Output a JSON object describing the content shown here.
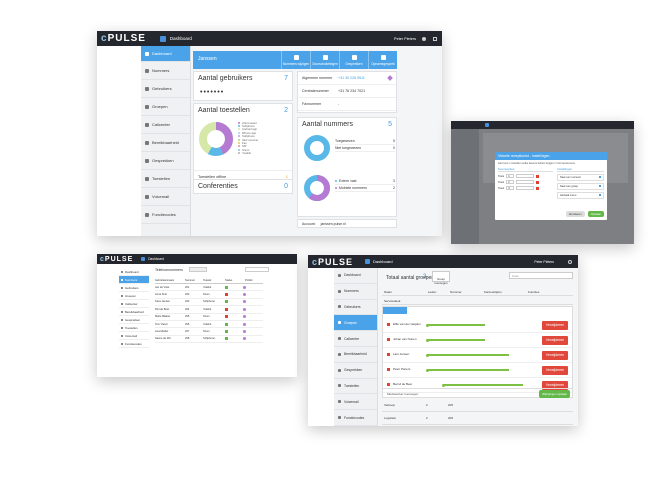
{
  "main": {
    "logo": "PULSE",
    "topbar_title": "Dashboard",
    "user": "Peter Pieters",
    "sidebar": [
      {
        "label": "Dashboard",
        "active": true
      },
      {
        "label": "Nummers"
      },
      {
        "label": "Gebruikers"
      },
      {
        "label": "Groepen"
      },
      {
        "label": "Callcenter"
      },
      {
        "label": "Bereikbaarheid"
      },
      {
        "label": "Gesprekken"
      },
      {
        "label": "Toestellen"
      },
      {
        "label": "Voicemail"
      },
      {
        "label": "Functiecodes"
      }
    ],
    "header_user": "Janssen",
    "header_buttons": [
      "Nummers wijzigen",
      "Doorschakelingen",
      "Gesprekken",
      "Opnamegesprek"
    ],
    "gebruikers": {
      "label": "Aantal gebruikers",
      "count": "7",
      "dots": "•••••••"
    },
    "toestellen": {
      "label": "Aantal toestellen",
      "count": "2",
      "legend": [
        "Ariel toestel",
        "Softphone",
        "Android app",
        "iPhone app",
        "Softphone",
        "Vast nummer",
        "Fax",
        "SIP",
        "Snom",
        "Yealink"
      ],
      "offline_label": "Toestellen offline",
      "offline_count": "1"
    },
    "conferenties": {
      "label": "Conferenties",
      "count": "0"
    },
    "info_rows": [
      {
        "label": "Algemeen nummer",
        "value": "+31 30 226 9511"
      },
      {
        "label": "Centralenummer",
        "value": "+31 76 234 7021"
      },
      {
        "label": "Faxnummer",
        "value": "-"
      }
    ],
    "nummers": {
      "label": "Aantal nummers",
      "count": "5",
      "donut1_rows": [
        {
          "label": "Toegewezen",
          "value": "5"
        },
        {
          "label": "Niet toegewezen",
          "value": "0"
        }
      ],
      "donut2_rows": [
        {
          "label": "Extern vast",
          "value": "3"
        },
        {
          "label": "Mobiele nummers",
          "value": "2"
        }
      ]
    },
    "account": {
      "label": "Account:",
      "value": "janssen.pulse.nl"
    }
  },
  "right_top": {
    "dialog_title": "Virtuele receptionist - Instellingen",
    "dialog_text": "Hier kunt u instellen welke keuzes bellers krijgen in het keuzemenu.",
    "col_left": "Keuzeopties",
    "col_right": "Instellingen",
    "rows": [
      {
        "k": "Toets",
        "v": "1"
      },
      {
        "k": "Toets",
        "v": "2"
      },
      {
        "k": "Toets",
        "v": "3"
      }
    ],
    "right_items": [
      "Naar een nummer",
      "Naar een groep",
      "Herhaal menu"
    ],
    "cancel": "Annuleren",
    "save": "Opslaan"
  },
  "left_bottom": {
    "topbar_title": "Dashboard",
    "header": "Telefoonnummers",
    "sidebar": [
      "Dashboard",
      "Nummers",
      "Gebruikers",
      "Groepen",
      "Callcenter",
      "Bereikbaarheid",
      "Gesprekken",
      "Toestellen",
      "Voicemail",
      "Functiecodes"
    ],
    "columns": [
      "Gebruikersnaam",
      "Nummer",
      "Toestel",
      "Status",
      "Profiel"
    ],
    "rows": [
      [
        "Jan de Vries",
        "201",
        "Yealink"
      ],
      [
        "Anna Smit",
        "202",
        "Snom"
      ],
      [
        "Kees Jansen",
        "203",
        "Softphone"
      ],
      [
        "Piet de Boer",
        "204",
        "Yealink"
      ],
      [
        "Marie Bakker",
        "205",
        "Snom"
      ],
      [
        "Tom Visser",
        "206",
        "Yealink"
      ],
      [
        "Lisa Mulder",
        "207",
        "Snom"
      ],
      [
        "Sanne de Wit",
        "208",
        "Softphone"
      ]
    ]
  },
  "right_bottom": {
    "topbar_title": "Dashboard",
    "user": "Peter Pieters",
    "search_placeholder": "Zoek",
    "sidebar": [
      {
        "label": "Dashboard"
      },
      {
        "label": "Nummers"
      },
      {
        "label": "Gebruikers"
      },
      {
        "label": "Groepen",
        "active": true
      },
      {
        "label": "Callcenter"
      },
      {
        "label": "Bereikbaarheid"
      },
      {
        "label": "Gesprekken"
      },
      {
        "label": "Toestellen"
      },
      {
        "label": "Voicemail"
      },
      {
        "label": "Functiecodes"
      }
    ],
    "page_title": "Totaal aantal groepen",
    "page_count": "3",
    "add_button": "Groep toevoegen",
    "columns": [
      "Naam",
      "Leden",
      "Nummer",
      "Kantoortijden",
      "Functies"
    ],
    "group_name": "Servicedesk",
    "timeline_members": [
      "Effie van der Heijden",
      "Johan van Nunen",
      "Lars Jansen",
      "Peter Pieters",
      "Bernd de Beer"
    ],
    "remove_label": "Verwijderen",
    "footer_left": "Medewerker toevoegen",
    "footer_right": "Wijzigingen opslaan",
    "bottom_rows": [
      {
        "name": "Verkoop",
        "members": "2",
        "number": "205"
      },
      {
        "name": "Logistiek",
        "members": "2",
        "number": "206"
      }
    ]
  }
}
